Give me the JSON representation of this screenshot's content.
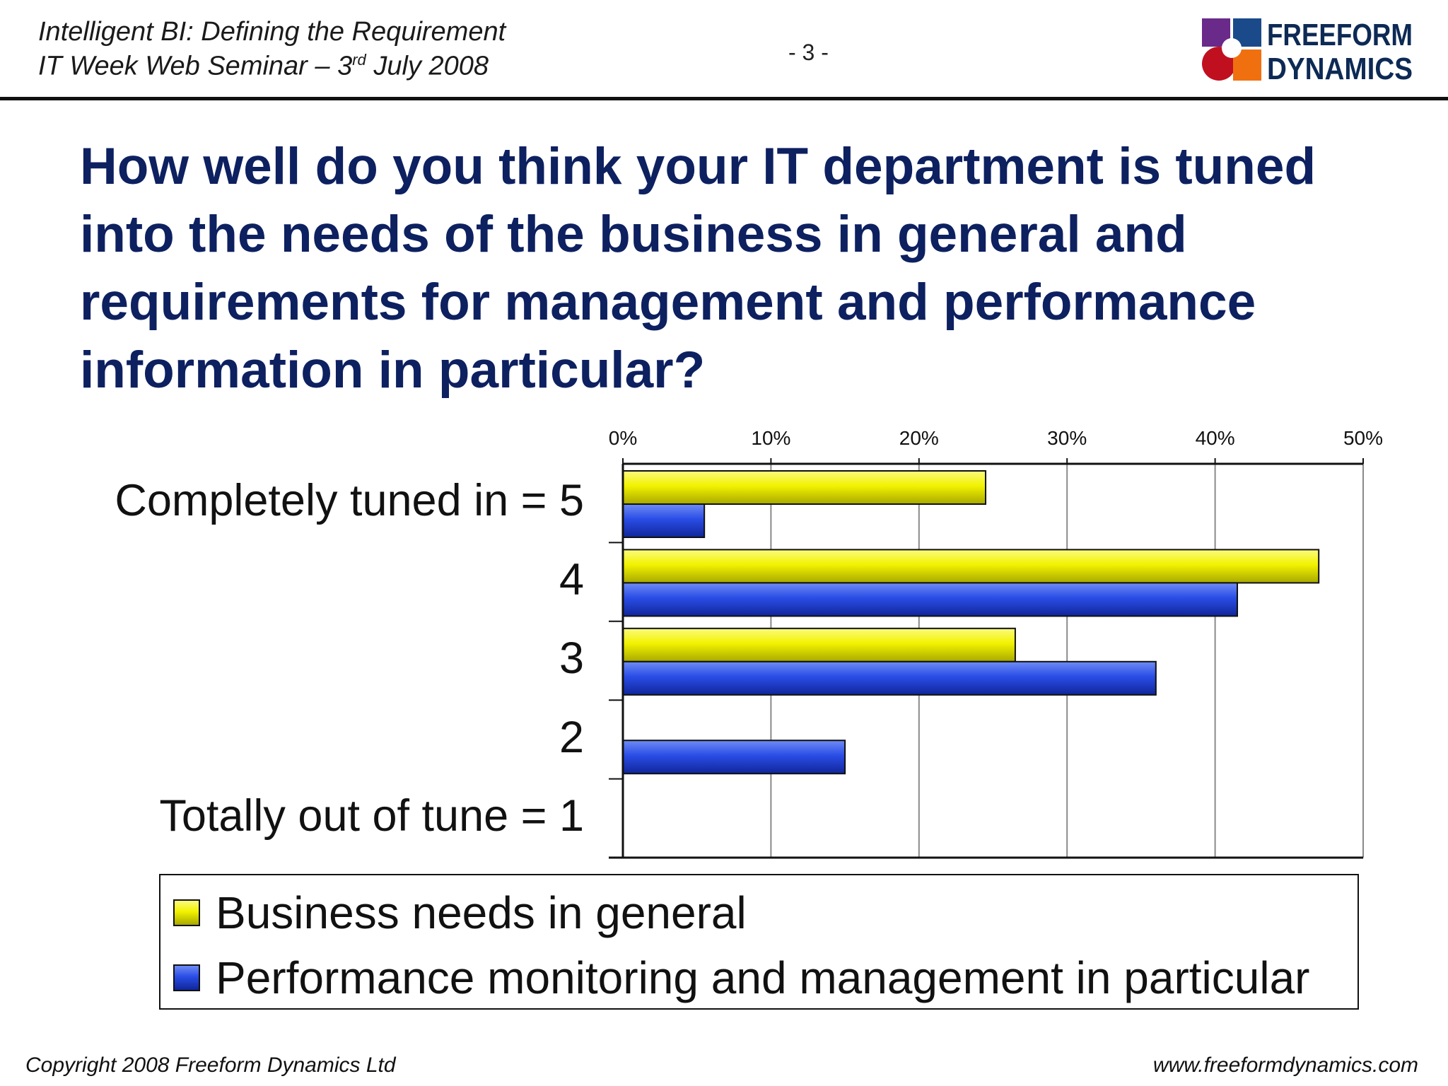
{
  "header": {
    "line1": "Intelligent BI: Defining the Requirement",
    "line2_prefix": "IT Week Web Seminar – 3",
    "line2_sup": "rd",
    "line2_suffix": " July 2008",
    "page_number": "- 3 -",
    "logo_text_1": "FREEFORM",
    "logo_text_2": "DYNAMICS"
  },
  "title": "How well do you think your IT department is tuned into the needs of the business in general and requirements for management and performance information in particular?",
  "chart_data": {
    "type": "bar",
    "orientation": "horizontal",
    "categories": [
      "Completely tuned in = 5",
      "4",
      "3",
      "2",
      "Totally out of tune = 1"
    ],
    "series": [
      {
        "name": "Business needs in general",
        "color": "#f0f000",
        "values": [
          24.5,
          47,
          26.5,
          0,
          0
        ]
      },
      {
        "name": "Performance monitoring and management in particular",
        "color": "#2546e0",
        "values": [
          5.5,
          41.5,
          36,
          15,
          0
        ]
      }
    ],
    "xlim": [
      0,
      50
    ],
    "xticks": [
      "0%",
      "10%",
      "20%",
      "30%",
      "40%",
      "50%"
    ],
    "x_axis_position": "top",
    "grid": true,
    "legend_position": "bottom"
  },
  "footer": {
    "left": "Copyright 2008 Freeform Dynamics Ltd",
    "right": "www.freeformdynamics.com"
  }
}
